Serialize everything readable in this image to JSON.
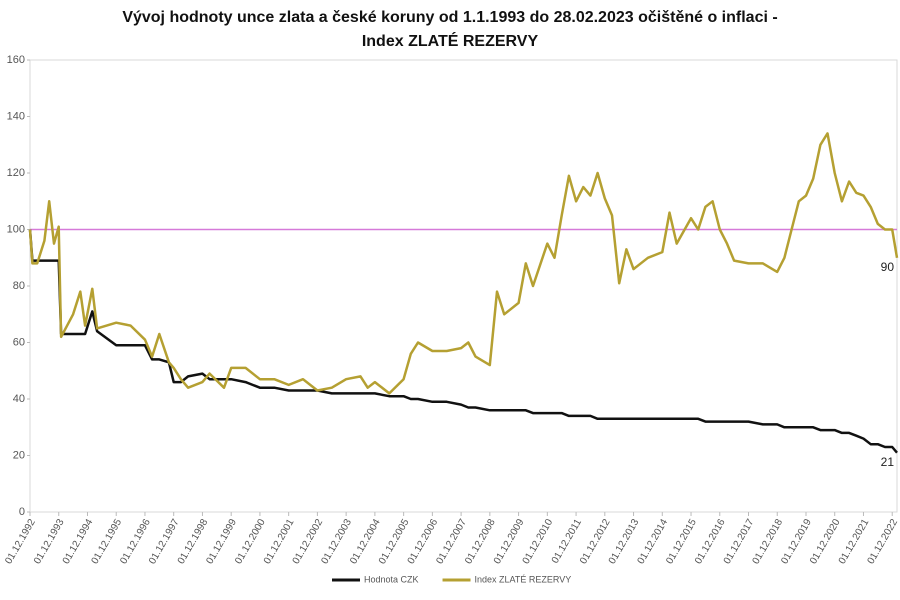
{
  "chart_data": {
    "type": "line",
    "title": [
      "Vývoj hodnoty unce zlata a české koruny od 1.1.1993 do 28.02.2023 očištěné o inflaci -",
      "Index ZLATÉ REZERVY"
    ],
    "x": [
      "1992-12-01",
      "1993-01-01",
      "1993-03-01",
      "1993-06-01",
      "1993-08-01",
      "1993-10-01",
      "1993-12-01",
      "1994-01-01",
      "1994-06-01",
      "1994-09-01",
      "1994-11-01",
      "1995-02-01",
      "1995-04-01",
      "1995-12-01",
      "1996-06-01",
      "1996-12-01",
      "1997-03-01",
      "1997-06-01",
      "1997-10-01",
      "1997-12-01",
      "1998-03-01",
      "1998-06-01",
      "1998-12-01",
      "1999-03-01",
      "1999-09-01",
      "1999-12-01",
      "2000-06-01",
      "2000-12-01",
      "2001-06-01",
      "2001-12-01",
      "2002-06-01",
      "2002-12-01",
      "2003-06-01",
      "2003-12-01",
      "2004-06-01",
      "2004-09-01",
      "2004-12-01",
      "2005-06-01",
      "2005-12-01",
      "2006-03-01",
      "2006-06-01",
      "2006-12-01",
      "2007-06-01",
      "2007-12-01",
      "2008-03-01",
      "2008-06-01",
      "2008-12-01",
      "2009-03-01",
      "2009-06-01",
      "2009-12-01",
      "2010-03-01",
      "2010-06-01",
      "2010-12-01",
      "2011-03-01",
      "2011-06-01",
      "2011-09-01",
      "2011-12-01",
      "2012-03-01",
      "2012-06-01",
      "2012-09-01",
      "2012-12-01",
      "2013-03-01",
      "2013-06-01",
      "2013-09-01",
      "2013-12-01",
      "2014-06-01",
      "2014-12-01",
      "2015-03-01",
      "2015-06-01",
      "2015-12-01",
      "2016-03-01",
      "2016-06-01",
      "2016-09-01",
      "2016-12-01",
      "2017-03-01",
      "2017-06-01",
      "2017-12-01",
      "2018-06-01",
      "2018-12-01",
      "2019-03-01",
      "2019-06-01",
      "2019-09-01",
      "2019-12-01",
      "2020-03-01",
      "2020-06-01",
      "2020-09-01",
      "2020-12-01",
      "2021-03-01",
      "2021-06-01",
      "2021-09-01",
      "2021-12-01",
      "2022-03-01",
      "2022-06-01",
      "2022-09-01",
      "2022-12-01",
      "2023-02-01"
    ],
    "series": [
      {
        "name": "Hodnota CZK",
        "color": "#111111",
        "values": [
          100,
          89,
          89,
          89,
          89,
          89,
          89,
          63,
          63,
          63,
          63,
          71,
          64,
          59,
          59,
          59,
          54,
          54,
          53,
          46,
          46,
          48,
          49,
          47,
          47,
          47,
          46,
          44,
          44,
          43,
          43,
          43,
          42,
          42,
          42,
          42,
          42,
          41,
          41,
          40,
          40,
          39,
          39,
          38,
          37,
          37,
          36,
          36,
          36,
          36,
          36,
          35,
          35,
          35,
          35,
          34,
          34,
          34,
          34,
          33,
          33,
          33,
          33,
          33,
          33,
          33,
          33,
          33,
          33,
          33,
          33,
          32,
          32,
          32,
          32,
          32,
          32,
          31,
          31,
          30,
          30,
          30,
          30,
          30,
          29,
          29,
          29,
          28,
          28,
          27,
          26,
          24,
          24,
          23,
          23,
          21
        ]
      },
      {
        "name": "Index ZLATÉ REZERVY",
        "color": "#b5a032",
        "values": [
          100,
          88,
          88,
          96,
          110,
          95,
          101,
          62,
          70,
          78,
          66,
          79,
          65,
          67,
          66,
          61,
          55,
          63,
          53,
          51,
          47,
          44,
          46,
          49,
          44,
          51,
          51,
          47,
          47,
          45,
          47,
          43,
          44,
          47,
          48,
          44,
          46,
          42,
          47,
          56,
          60,
          57,
          57,
          58,
          60,
          55,
          52,
          78,
          70,
          74,
          88,
          80,
          95,
          90,
          105,
          119,
          110,
          115,
          112,
          120,
          111,
          105,
          81,
          93,
          86,
          90,
          92,
          106,
          95,
          104,
          100,
          108,
          110,
          100,
          95,
          89,
          88,
          88,
          85,
          90,
          100,
          110,
          112,
          118,
          130,
          134,
          120,
          110,
          117,
          113,
          112,
          108,
          102,
          100,
          100,
          90
        ]
      }
    ],
    "reference_line": {
      "value": 100,
      "color": "#d67ad9"
    },
    "xlim": [
      "1992-12-01",
      "2023-02-01"
    ],
    "xticks": [
      {
        "value": "1992-12-01",
        "label": "01.12.1992"
      },
      {
        "value": "1993-12-01",
        "label": "01.12.1993"
      },
      {
        "value": "1994-12-01",
        "label": "01.12.1994"
      },
      {
        "value": "1995-12-01",
        "label": "01.12.1995"
      },
      {
        "value": "1996-12-01",
        "label": "01.12.1996"
      },
      {
        "value": "1997-12-01",
        "label": "01.12.1997"
      },
      {
        "value": "1998-12-01",
        "label": "01.12.1998"
      },
      {
        "value": "1999-12-01",
        "label": "01.12.1999"
      },
      {
        "value": "2000-12-01",
        "label": "01.12.2000"
      },
      {
        "value": "2001-12-01",
        "label": "01.12.2001"
      },
      {
        "value": "2002-12-01",
        "label": "01.12.2002"
      },
      {
        "value": "2003-12-01",
        "label": "01.12.2003"
      },
      {
        "value": "2004-12-01",
        "label": "01.12.2004"
      },
      {
        "value": "2005-12-01",
        "label": "01.12.2005"
      },
      {
        "value": "2006-12-01",
        "label": "01.12.2006"
      },
      {
        "value": "2007-12-01",
        "label": "01.12.2007"
      },
      {
        "value": "2008-12-01",
        "label": "01.12.2008"
      },
      {
        "value": "2009-12-01",
        "label": "01.12.2009"
      },
      {
        "value": "2010-12-01",
        "label": "01.12.2010"
      },
      {
        "value": "2011-12-01",
        "label": "01.12.2011"
      },
      {
        "value": "2012-12-01",
        "label": "01.12.2012"
      },
      {
        "value": "2013-12-01",
        "label": "01.12.2013"
      },
      {
        "value": "2014-12-01",
        "label": "01.12.2014"
      },
      {
        "value": "2015-12-01",
        "label": "01.12.2015"
      },
      {
        "value": "2016-12-01",
        "label": "01.12.2016"
      },
      {
        "value": "2017-12-01",
        "label": "01.12.2017"
      },
      {
        "value": "2018-12-01",
        "label": "01.12.2018"
      },
      {
        "value": "2019-12-01",
        "label": "01.12.2019"
      },
      {
        "value": "2020-12-01",
        "label": "01.12.2020"
      },
      {
        "value": "2021-12-01",
        "label": "01.12.2021"
      },
      {
        "value": "2022-12-01",
        "label": "01.12.2022"
      }
    ],
    "ylim": [
      0,
      160
    ],
    "yticks": [
      0,
      20,
      40,
      60,
      80,
      100,
      120,
      140,
      160
    ],
    "legend": "bottom"
  }
}
